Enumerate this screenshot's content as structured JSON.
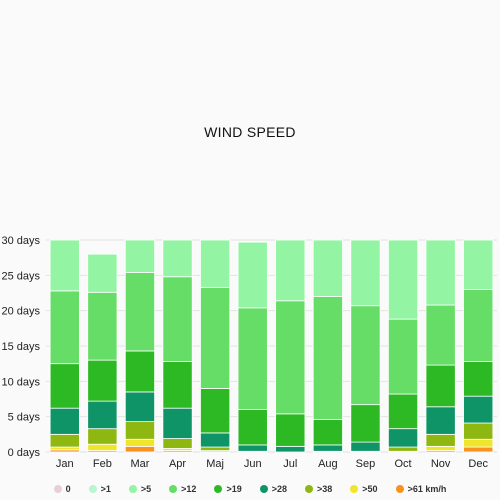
{
  "chart_data": {
    "type": "bar",
    "stacked": true,
    "title": "WIND SPEED",
    "categories": [
      "Jan",
      "Feb",
      "Mar",
      "Apr",
      "Maj",
      "Jun",
      "Jul",
      "Aug",
      "Sep",
      "Oct",
      "Nov",
      "Dec"
    ],
    "yticks": [
      "0 days",
      "5 days",
      "10 days",
      "15 days",
      "20 days",
      "25 days",
      "30 days"
    ],
    "ylim": [
      0,
      30
    ],
    "grid": true,
    "legend_position": "bottom",
    "series": [
      {
        "name": "0",
        "color": "#e8cfd6",
        "values": [
          0,
          0,
          0,
          0,
          0,
          0,
          0,
          0,
          0,
          0,
          0,
          0
        ]
      },
      {
        "name": ">1",
        "color": "#b8f5d0",
        "values": [
          0,
          0,
          0,
          0,
          0,
          0,
          0,
          0,
          0,
          0,
          0,
          0
        ]
      },
      {
        "name": ">61 km/h",
        "color": "#f7931e",
        "values": [
          0.3,
          0.2,
          0.8,
          0.2,
          0,
          0,
          0,
          0,
          0,
          0,
          0.2,
          0.7
        ]
      },
      {
        "name": ">50",
        "color": "#f0e52a",
        "values": [
          0.4,
          0.9,
          1.0,
          0.3,
          0.2,
          0,
          0,
          0,
          0,
          0.1,
          0.6,
          1.1
        ]
      },
      {
        "name": ">38",
        "color": "#8fb712",
        "values": [
          1.8,
          2.2,
          2.5,
          1.4,
          0.5,
          0.1,
          0,
          0.1,
          0.1,
          0.6,
          1.7,
          2.3
        ]
      },
      {
        "name": ">28",
        "color": "#0f9467",
        "values": [
          3.7,
          3.9,
          4.2,
          4.3,
          2.0,
          0.9,
          0.8,
          0.9,
          1.3,
          2.6,
          3.9,
          3.8
        ]
      },
      {
        "name": ">19",
        "color": "#2db924",
        "values": [
          6.3,
          5.8,
          5.8,
          6.6,
          6.3,
          5.0,
          4.6,
          3.6,
          5.3,
          4.9,
          5.9,
          4.9
        ]
      },
      {
        "name": ">12",
        "color": "#66dd66",
        "values": [
          10.3,
          9.6,
          11.1,
          12.0,
          14.3,
          14.4,
          16.0,
          17.4,
          14.0,
          10.6,
          8.5,
          10.2
        ]
      },
      {
        "name": ">5",
        "color": "#93f5a4",
        "values": [
          7.2,
          5.4,
          4.6,
          5.2,
          6.7,
          9.3,
          8.6,
          8.0,
          9.3,
          11.2,
          9.2,
          7.0
        ]
      }
    ]
  },
  "legend": [
    {
      "label": "0",
      "color": "#e8cfd6"
    },
    {
      "label": ">1",
      "color": "#b8f5d0"
    },
    {
      "label": ">5",
      "color": "#93f5a4"
    },
    {
      "label": ">12",
      "color": "#66dd66"
    },
    {
      "label": ">19",
      "color": "#2db924"
    },
    {
      "label": ">28",
      "color": "#0f9467"
    },
    {
      "label": ">38",
      "color": "#8fb712"
    },
    {
      "label": ">50",
      "color": "#f0e52a"
    },
    {
      "label": ">61 km/h",
      "color": "#f7931e"
    }
  ]
}
